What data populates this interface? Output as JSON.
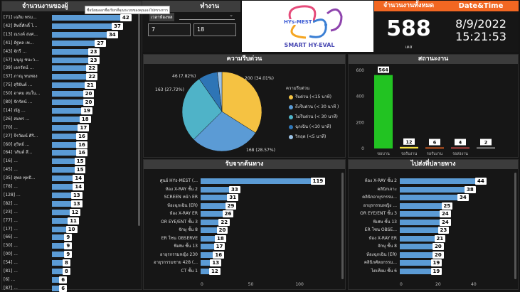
{
  "left_panel": {
    "title": "จำนวนงานของผู้",
    "tooltip": "ชื่อนิยมออกชื่อเรียกที่คุณระบบของคุณเองไปทรรงการ",
    "items": [
      {
        "label": "[71] เฉลิม พรม...",
        "value": 42
      },
      {
        "label": "[42] สิทธิ์ศักดิ์ ไ...",
        "value": 37
      },
      {
        "label": "[13] ณรงค์ ส่งศ...",
        "value": 34
      },
      {
        "label": "[41] อัฐพล เพ...",
        "value": 27
      },
      {
        "label": "[43] จักรี ...",
        "value": 23
      },
      {
        "label": "[57] มนูญ ชนะว...",
        "value": 23
      },
      {
        "label": "[39] เอกรัตน์ ...",
        "value": 22
      },
      {
        "label": "[37] ภาณุ ทนทอง",
        "value": 22
      },
      {
        "label": "[75] สุริยันต์ ...",
        "value": 21
      },
      {
        "label": "[50] อาคม สมใน...",
        "value": 20
      },
      {
        "label": "[80] จักรัตน์ ...",
        "value": 20
      },
      {
        "label": "[14] ณัฐ ...",
        "value": 19
      },
      {
        "label": "[26] สมพร ...",
        "value": 18
      },
      {
        "label": "[70] ...",
        "value": 17
      },
      {
        "label": "[27] จีรวัฒน์ ศิริ...",
        "value": 16
      },
      {
        "label": "[60] สุวิทย์ ...",
        "value": 16
      },
      {
        "label": "[64] วสันต์ สี...",
        "value": 16
      },
      {
        "label": "[16] ...",
        "value": 15
      },
      {
        "label": "[45] ...",
        "value": 15
      },
      {
        "label": "[35] สุพล พุทธิ...",
        "value": 14
      },
      {
        "label": "[78] ...",
        "value": 14
      },
      {
        "label": "[128] ...",
        "value": 13
      },
      {
        "label": "[82] ...",
        "value": 13
      },
      {
        "label": "[23] ...",
        "value": 12
      },
      {
        "label": "[77] ...",
        "value": 11
      },
      {
        "label": "[17] ...",
        "value": 10
      },
      {
        "label": "[66] ...",
        "value": 9
      },
      {
        "label": "[30] ...",
        "value": 9
      },
      {
        "label": "[00] ...",
        "value": 9
      },
      {
        "label": "[54] ...",
        "value": 8
      },
      {
        "label": "[81] ...",
        "value": 8
      },
      {
        "label": "[6] ...",
        "value": 6
      },
      {
        "label": "[87] ...",
        "value": 6
      }
    ]
  },
  "filter": {
    "title": "ทำงาน",
    "label": "เวลาห้องหล",
    "box1": "7",
    "box2": "18"
  },
  "logo": {
    "brand": "HYs-MEST",
    "subtitle": "SMART HY-EVAL"
  },
  "count": {
    "title": "จำนวนงานทั้งหมด",
    "value": "588",
    "unit": "เคส"
  },
  "datetime": {
    "title": "Date&Time",
    "date": "8/9/2022",
    "time": "15:21:53"
  },
  "pie": {
    "title": "ความรีบด่วน",
    "legend_title": "ความรีบด่วน",
    "slices": [
      {
        "name": "รีบด่วน (<15 นาที)",
        "value": 200,
        "label": "200 (34.01%)",
        "color": "#f5c242"
      },
      {
        "name": "ถึงรีบด่วน (< 30 นาที )",
        "value": 168,
        "label": "168 (28.57%)",
        "color": "#5b9bd5"
      },
      {
        "name": "ไม่รีบด่วน (< 30 นาที)",
        "value": 163,
        "label": "163 (27.72%)",
        "color": "#4fb3c8"
      },
      {
        "name": "ฉุกเฉิน (<10 นาที)",
        "value": 46,
        "label": "46 (7.82%)",
        "color": "#2e75b6"
      },
      {
        "name": "วิกฤต (<5 นาที)",
        "value": 11,
        "label": "",
        "color": "#9dc3e6"
      }
    ]
  },
  "status": {
    "title": "สถานะงาน",
    "ylim": [
      0,
      600
    ],
    "ticks": [
      "600",
      "400",
      "200",
      "0"
    ],
    "categories": [
      "ขอบาน",
      "รอรับงาน",
      "รอรับงาน",
      "รอส่งงาน",
      ""
    ],
    "values": [
      564,
      12,
      6,
      4,
      2
    ],
    "colors": [
      "#22c322",
      "#f5e042",
      "#f26722",
      "#d9534f",
      "#aaaaaa"
    ]
  },
  "source": {
    "title": "รับจากต้นทาง",
    "axis": [
      "0",
      "50",
      "100"
    ],
    "items": [
      {
        "label": "ศูนย์ HYs-MEST (...",
        "value": 119
      },
      {
        "label": "ห้อง X-RAY ชั้น 2",
        "value": 33
      },
      {
        "label": "SCREEN หน้า ER",
        "value": 31
      },
      {
        "label": "ห้องฉุกเฉิน (ER)",
        "value": 29
      },
      {
        "label": "ห้อง X-RAY ER",
        "value": 26
      },
      {
        "label": "OR EYE/ENT ชั้น 3",
        "value": 22
      },
      {
        "label": "จักษุ ชั้น 8",
        "value": 20
      },
      {
        "label": "ER โซน OBSERVE",
        "value": 18
      },
      {
        "label": "พิเศษ ชั้น 13",
        "value": 17
      },
      {
        "label": "อายุรกรรมหญิง 230",
        "value": 16
      },
      {
        "label": "อายุรกรรมชาย 428 (...",
        "value": 13
      },
      {
        "label": "CT ชั้น 1",
        "value": 12
      }
    ]
  },
  "destination": {
    "title": "ไปส่งที่ปลายทาง",
    "axis": [
      "0",
      "20",
      "40"
    ],
    "items": [
      {
        "label": "ห้อง X-RAY ชั้น 2",
        "value": 44
      },
      {
        "label": "คลินิกเจาะ",
        "value": 38
      },
      {
        "label": "คลินิกอายุรกรรม...",
        "value": 34
      },
      {
        "label": "อายุรกรรมหญิง ...",
        "value": 25
      },
      {
        "label": "OR EYE/ENT ชั้น 3",
        "value": 24
      },
      {
        "label": "พิเศษ ชั้น 13",
        "value": 24
      },
      {
        "label": "ER โซน OBSE...",
        "value": 23
      },
      {
        "label": "ห้อง X-RAY ER",
        "value": 21
      },
      {
        "label": "จักษุ ชั้น 8",
        "value": 20
      },
      {
        "label": "ห้องฉุกเฉิน (ER)",
        "value": 20
      },
      {
        "label": "คลินิกศัลยกรรม...",
        "value": 19
      },
      {
        "label": "ไตเทียม ชั้น 6",
        "value": 19
      }
    ]
  }
}
